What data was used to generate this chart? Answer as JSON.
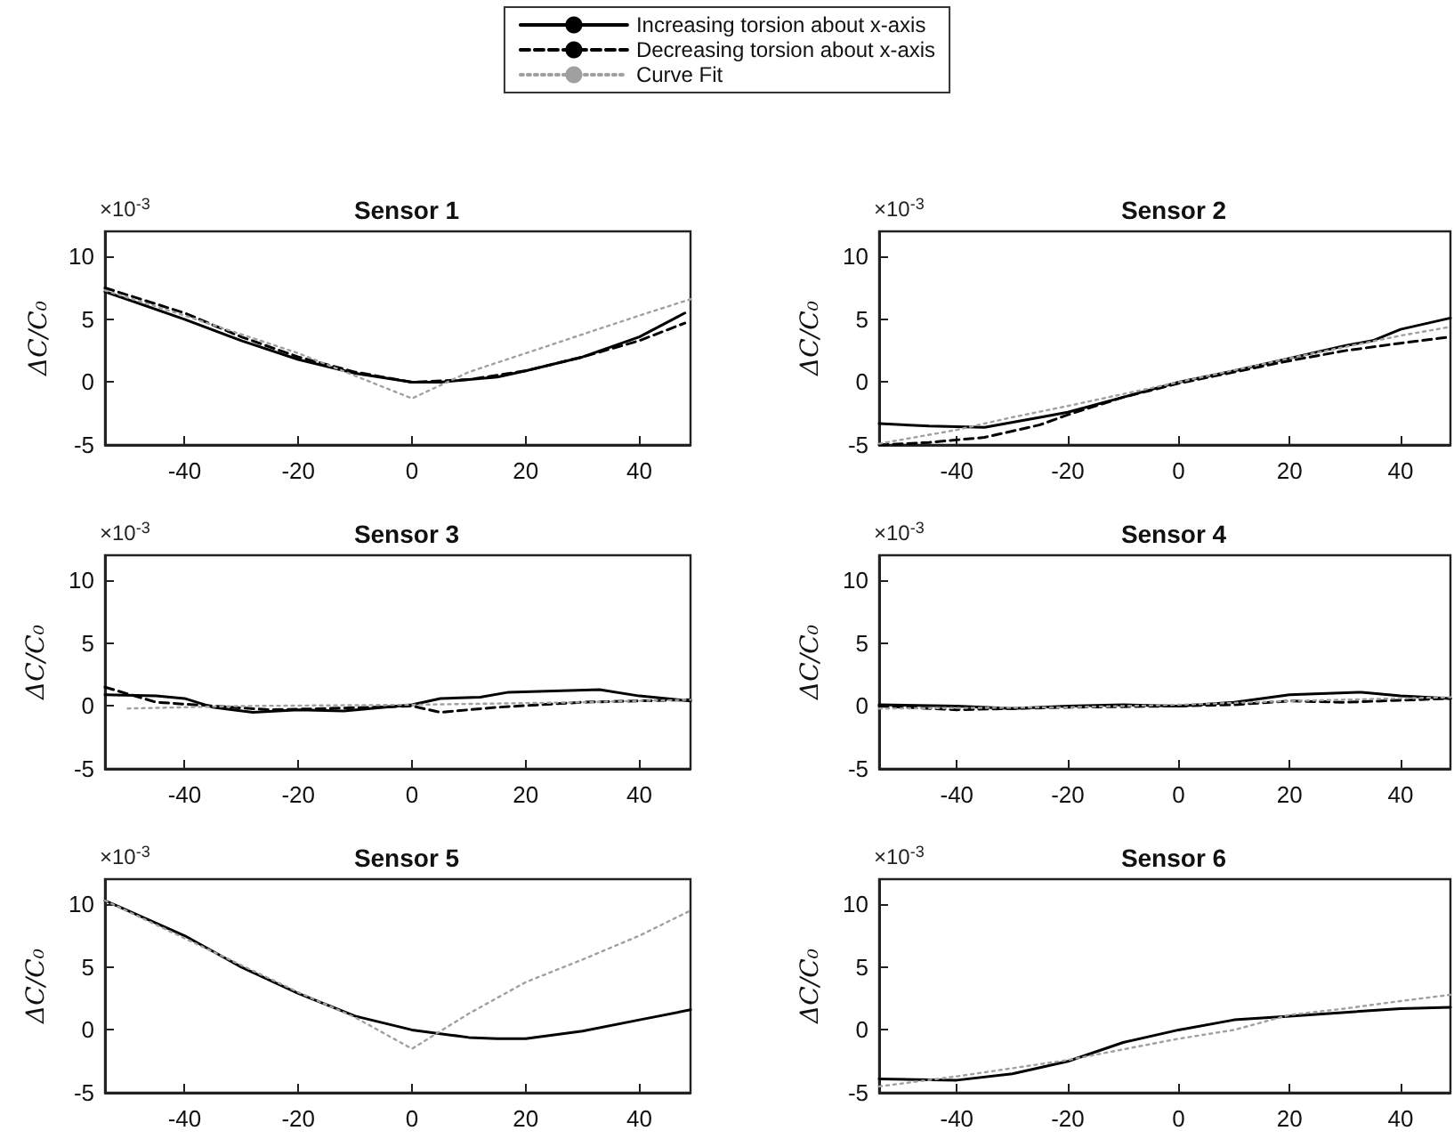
{
  "chart_data": [
    {
      "type": "line",
      "title": "Sensor 1",
      "ylabel": "ΔC/C₀",
      "annotations": [
        "×10$^{-3}$"
      ],
      "legend": "top",
      "xlim": [
        -54,
        49
      ],
      "xticks": [
        -40,
        -20,
        0,
        20,
        40
      ],
      "ylim": [
        -5,
        12
      ],
      "yticks": [
        -5,
        0,
        5,
        10
      ],
      "series": [
        {
          "name": "Increasing torsion about x-axis",
          "color": "#000000",
          "line_style": "solid",
          "x": [
            -54,
            -40,
            -30,
            -20,
            -10,
            0,
            5,
            10,
            15,
            20,
            30,
            40,
            48
          ],
          "values": [
            7.2,
            5,
            3.3,
            1.8,
            0.7,
            0,
            0,
            0.2,
            0.4,
            0.9,
            2,
            3.6,
            5.5
          ]
        },
        {
          "name": "Decreasing torsion about x-axis",
          "color": "#000000",
          "line_style": "dashed",
          "x": [
            -54,
            -40,
            -30,
            -20,
            -10,
            0,
            10,
            20,
            30,
            40,
            48
          ],
          "values": [
            7.5,
            5.5,
            3.6,
            2,
            0.8,
            0,
            0.2,
            0.9,
            2,
            3.3,
            4.7
          ]
        },
        {
          "name": "Curve Fit",
          "color": "#a0a0a0",
          "line_style": "dotted",
          "x": [
            -54,
            -40,
            -20,
            -10,
            0,
            10,
            20,
            30,
            40,
            49
          ],
          "values": [
            7.3,
            5.3,
            2.3,
            0.5,
            -1.3,
            0.8,
            2.3,
            3.8,
            5.3,
            6.6
          ]
        }
      ]
    },
    {
      "type": "line",
      "title": "Sensor 2",
      "ylabel": "ΔC/C₀",
      "annotations": [
        "×10$^{-3}$"
      ],
      "xlim": [
        -54,
        49
      ],
      "xticks": [
        -40,
        -20,
        0,
        20,
        40
      ],
      "ylim": [
        -5,
        12
      ],
      "yticks": [
        -5,
        0,
        5,
        10
      ],
      "series": [
        {
          "color": "#000000",
          "line_style": "solid",
          "x": [
            -54,
            -45,
            -35,
            -25,
            -20,
            -10,
            0,
            10,
            20,
            30,
            35,
            40,
            49
          ],
          "values": [
            -3.3,
            -3.5,
            -3.6,
            -2.8,
            -2.4,
            -1.2,
            0,
            0.9,
            1.9,
            2.9,
            3.3,
            4.2,
            5.1
          ]
        },
        {
          "color": "#000000",
          "line_style": "dashed",
          "x": [
            -54,
            -45,
            -35,
            -25,
            -20,
            -10,
            0,
            10,
            20,
            30,
            40,
            49
          ],
          "values": [
            -5,
            -4.8,
            -4.4,
            -3.4,
            -2.6,
            -1.2,
            -0.1,
            0.8,
            1.7,
            2.5,
            3.1,
            3.6
          ]
        },
        {
          "color": "#a0a0a0",
          "line_style": "dotted",
          "x": [
            -54,
            -40,
            -30,
            -20,
            0,
            20,
            40,
            49
          ],
          "values": [
            -4.9,
            -3.8,
            -2.8,
            -1.9,
            0,
            1.9,
            3.7,
            4.4
          ]
        }
      ]
    },
    {
      "type": "line",
      "title": "Sensor 3",
      "ylabel": "ΔC/C₀",
      "annotations": [
        "×10$^{-3}$"
      ],
      "xlim": [
        -54,
        49
      ],
      "xticks": [
        -40,
        -20,
        0,
        20,
        40
      ],
      "ylim": [
        -5,
        12
      ],
      "yticks": [
        -5,
        0,
        5,
        10
      ],
      "series": [
        {
          "color": "#000000",
          "line_style": "solid",
          "x": [
            -54,
            -45,
            -40,
            -35,
            -28,
            -20,
            -12,
            0,
            5,
            12,
            17,
            25,
            33,
            40,
            49
          ],
          "values": [
            0.9,
            0.8,
            0.6,
            -0.1,
            -0.5,
            -0.3,
            -0.4,
            0.1,
            0.6,
            0.7,
            1.1,
            1.2,
            1.3,
            0.8,
            0.4
          ]
        },
        {
          "color": "#000000",
          "line_style": "dashed",
          "x": [
            -54,
            -45,
            -35,
            -25,
            -15,
            0,
            5,
            15,
            30,
            49
          ],
          "values": [
            1.5,
            0.3,
            0,
            -0.3,
            -0.2,
            0,
            -0.5,
            -0.1,
            0.3,
            0.5
          ]
        },
        {
          "color": "#a0a0a0",
          "line_style": "dotted",
          "x": [
            -50,
            -30,
            0,
            30,
            49
          ],
          "values": [
            -0.2,
            0,
            0.1,
            0.3,
            0.5
          ]
        }
      ]
    },
    {
      "type": "line",
      "title": "Sensor 4",
      "ylabel": "ΔC/C₀",
      "annotations": [
        "×10$^{-3}$"
      ],
      "xlim": [
        -54,
        49
      ],
      "xticks": [
        -40,
        -20,
        0,
        20,
        40
      ],
      "ylim": [
        -5,
        12
      ],
      "yticks": [
        -5,
        0,
        5,
        10
      ],
      "series": [
        {
          "color": "#000000",
          "line_style": "solid",
          "x": [
            -54,
            -40,
            -30,
            -20,
            -10,
            0,
            10,
            20,
            33,
            40,
            49
          ],
          "values": [
            0.1,
            0,
            -0.2,
            0,
            0.1,
            0,
            0.3,
            0.9,
            1.1,
            0.8,
            0.6
          ]
        },
        {
          "color": "#000000",
          "line_style": "dashed",
          "x": [
            -54,
            -40,
            -20,
            0,
            10,
            20,
            30,
            49
          ],
          "values": [
            0,
            -0.3,
            -0.1,
            0,
            0.1,
            0.4,
            0.3,
            0.6
          ]
        },
        {
          "color": "#a0a0a0",
          "line_style": "dotted",
          "x": [
            -54,
            -20,
            0,
            20,
            49
          ],
          "values": [
            -0.2,
            -0.1,
            0.1,
            0.4,
            0.7
          ]
        }
      ]
    },
    {
      "type": "line",
      "title": "Sensor 5",
      "ylabel": "ΔC/C₀",
      "annotations": [
        "×10$^{-3}$"
      ],
      "xlim": [
        -54,
        49
      ],
      "xticks": [
        -40,
        -20,
        0,
        20,
        40
      ],
      "ylim": [
        -5,
        12
      ],
      "yticks": [
        -5,
        0,
        5,
        10
      ],
      "series": [
        {
          "color": "#000000",
          "line_style": "solid",
          "x": [
            -54,
            -40,
            -30,
            -20,
            -10,
            0,
            10,
            15,
            20,
            30,
            40,
            49
          ],
          "values": [
            10.3,
            7.5,
            5,
            2.9,
            1.1,
            0,
            -0.6,
            -0.7,
            -0.7,
            -0.1,
            0.8,
            1.6
          ]
        },
        {
          "color": "#a0a0a0",
          "line_style": "dotted",
          "x": [
            -54,
            -20,
            -10,
            0,
            10,
            20,
            30,
            40,
            49
          ],
          "values": [
            10.3,
            3,
            1,
            -1.5,
            1.3,
            3.8,
            5.6,
            7.5,
            9.5
          ]
        }
      ]
    },
    {
      "type": "line",
      "title": "Sensor 6",
      "ylabel": "ΔC/C₀",
      "annotations": [
        "×10$^{-3}$"
      ],
      "xlim": [
        -54,
        49
      ],
      "xticks": [
        -40,
        -20,
        0,
        20,
        40
      ],
      "ylim": [
        -5,
        12
      ],
      "yticks": [
        -5,
        0,
        5,
        10
      ],
      "series": [
        {
          "color": "#000000",
          "line_style": "solid",
          "x": [
            -54,
            -40,
            -30,
            -20,
            -10,
            0,
            10,
            20,
            30,
            40,
            49
          ],
          "values": [
            -3.9,
            -4,
            -3.5,
            -2.5,
            -1,
            0,
            0.8,
            1.1,
            1.4,
            1.7,
            1.8
          ]
        },
        {
          "color": "#a0a0a0",
          "line_style": "dotted",
          "x": [
            -54,
            -40,
            -20,
            0,
            10,
            20,
            30,
            40,
            49
          ],
          "values": [
            -4.5,
            -3.7,
            -2.4,
            -0.7,
            0,
            1.2,
            1.7,
            2.3,
            2.8
          ]
        }
      ]
    }
  ]
}
